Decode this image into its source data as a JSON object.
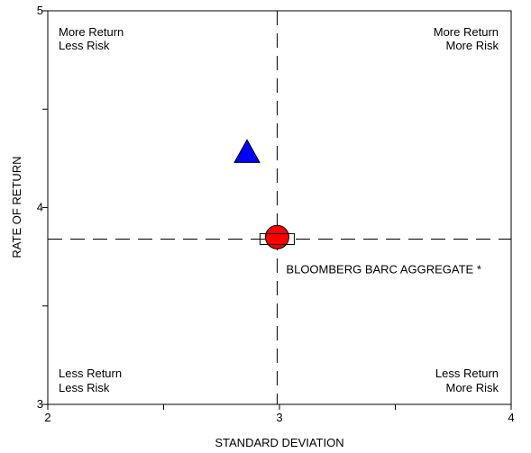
{
  "chart_data": {
    "type": "scatter",
    "xlabel": "STANDARD DEVIATION",
    "ylabel": "RATE OF RETURN",
    "xlim": [
      2,
      4
    ],
    "ylim": [
      3,
      5
    ],
    "x_ticks": [
      "2",
      "3",
      "4"
    ],
    "y_ticks": [
      "3",
      "4",
      "5"
    ],
    "grid": false,
    "reference_lines": {
      "x": 2.99,
      "y": 3.84
    },
    "quadrants": {
      "top_left": [
        "More Return",
        "Less Risk"
      ],
      "top_right": [
        "More Return",
        "More Risk"
      ],
      "bottom_left": [
        "Less Return",
        "Less Risk"
      ],
      "bottom_right": [
        "Less Return",
        "More Risk"
      ]
    },
    "points": [
      {
        "marker": "triangle",
        "color": "#0000ff",
        "x": 2.86,
        "y": 4.28
      },
      {
        "marker": "circle",
        "color": "#ff0000",
        "x": 2.99,
        "y": 3.85
      },
      {
        "marker": "square",
        "color": "#ffffff",
        "x": 2.99,
        "y": 3.84,
        "label": "BLOOMBERG BARC AGGREGATE *"
      }
    ]
  }
}
